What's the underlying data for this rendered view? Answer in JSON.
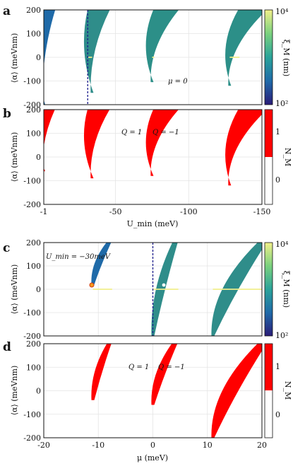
{
  "chart_data": [
    {
      "panel": "a",
      "type": "heatmap",
      "xlabel": "",
      "ylabel": "⟨α⟩ (meVnm)",
      "xlim": [
        -1,
        -150
      ],
      "ylim": [
        -200,
        200
      ],
      "xticks": [
        "-1",
        "-50",
        "-100",
        "-150"
      ],
      "yticks": [
        "-200",
        "-100",
        "0",
        "100",
        "200"
      ],
      "xtick_values": [
        -1,
        -50,
        -100,
        -150
      ],
      "ytick_values": [
        -200,
        -100,
        0,
        100,
        200
      ],
      "annotation": "μ = 0",
      "colorbar": {
        "label": "ξ_M (nm)",
        "min": "10²",
        "max": "10⁴",
        "scale": "log",
        "colors": [
          "#2a1c78",
          "#1f6aa8",
          "#2aa39a",
          "#7ad17e",
          "#f2f08a"
        ]
      },
      "dashed_line_x": -31,
      "grid": true,
      "tongues": [
        {
          "x_top": -6,
          "x_bottom": -1,
          "y_bottom": -200,
          "bulge": 22,
          "color": "#1f6aa8"
        },
        {
          "x_top": -43,
          "x_bottom": -34,
          "y_bottom": -150,
          "bulge": 26,
          "color": "#2f8d8a"
        },
        {
          "x_top": -90,
          "x_bottom": -75,
          "y_bottom": -105,
          "bulge": 30,
          "color": "#2c8f88"
        },
        {
          "x_top": -150,
          "x_bottom": -128,
          "y_bottom": -120,
          "bulge": 34,
          "color": "#2c8f88"
        }
      ]
    },
    {
      "panel": "b",
      "type": "heatmap",
      "xlabel": "U_min (meV)",
      "ylabel": "⟨α⟩ (meVnm)",
      "xlim": [
        -1,
        -150
      ],
      "ylim": [
        -200,
        200
      ],
      "xticks": [
        "-1",
        "-50",
        "-100",
        "-150"
      ],
      "yticks": [
        "-200",
        "-100",
        "0",
        "100",
        "200"
      ],
      "xtick_values": [
        -1,
        -50,
        -100,
        -150
      ],
      "ytick_values": [
        -200,
        -100,
        0,
        100,
        200
      ],
      "annotations": [
        "Q = 1",
        "Q = −1"
      ],
      "colorbar": {
        "label": "N_M",
        "ticks": [
          "1",
          "0"
        ]
      },
      "grid": true,
      "regions": [
        {
          "x_top": -6,
          "x_bottom": -1,
          "y_bottom": -60,
          "bulge": 22
        },
        {
          "x_top": -43,
          "x_bottom": -34,
          "y_bottom": -90,
          "bulge": 26
        },
        {
          "x_top": -90,
          "x_bottom": -75,
          "y_bottom": -80,
          "bulge": 30
        },
        {
          "x_top": -150,
          "x_bottom": -128,
          "y_bottom": -120,
          "bulge": 34
        }
      ]
    },
    {
      "panel": "c",
      "type": "heatmap",
      "xlabel": "",
      "ylabel": "⟨α⟩ (meVnm)",
      "xlim": [
        -20,
        20
      ],
      "ylim": [
        -200,
        200
      ],
      "xticks": [
        "-20",
        "-10",
        "0",
        "10",
        "20"
      ],
      "yticks": [
        "-200",
        "-100",
        "0",
        "100",
        "200"
      ],
      "xtick_values": [
        -20,
        -10,
        0,
        10,
        20
      ],
      "ytick_values": [
        -200,
        -100,
        0,
        100,
        200
      ],
      "annotation": "U_min = −30meV",
      "colorbar": {
        "label": "ξ_M (nm)",
        "min": "10²",
        "max": "10⁴",
        "scale": "log",
        "colors": [
          "#2a1c78",
          "#1f6aa8",
          "#2aa39a",
          "#7ad17e",
          "#f2f08a"
        ]
      },
      "dashed_line_x": 0,
      "grid": true,
      "tongues": [
        {
          "x_top": -8,
          "x_bottom": -11,
          "y_bottom": 20,
          "bulge": 1.2,
          "color": "#1f6aa8"
        },
        {
          "x_top": 4,
          "x_bottom": 0,
          "y_bottom": -200,
          "bulge": 1.5,
          "color": "#2f8d8a"
        },
        {
          "x_top": 20,
          "x_bottom": 11,
          "y_bottom": -200,
          "bulge": 2.5,
          "color": "#2f8d8a"
        }
      ]
    },
    {
      "panel": "d",
      "type": "heatmap",
      "xlabel": "μ (meV)",
      "ylabel": "⟨α⟩ (meVnm)",
      "xlim": [
        -20,
        20
      ],
      "ylim": [
        -200,
        200
      ],
      "xticks": [
        "-20",
        "-10",
        "0",
        "10",
        "20"
      ],
      "yticks": [
        "-200",
        "-100",
        "0",
        "100",
        "200"
      ],
      "xtick_values": [
        -20,
        -10,
        0,
        10,
        20
      ],
      "ytick_values": [
        -200,
        -100,
        0,
        100,
        200
      ],
      "annotations": [
        "Q = 1",
        "Q = −1"
      ],
      "colorbar": {
        "label": "N_M",
        "ticks": [
          "1",
          "0"
        ]
      },
      "grid": true,
      "regions": [
        {
          "x_top": -8,
          "x_bottom": -11,
          "y_bottom": -40,
          "bulge": 1.2
        },
        {
          "x_top": 4,
          "x_bottom": 0,
          "y_bottom": -60,
          "bulge": 1.5
        },
        {
          "x_top": 20,
          "x_bottom": 11,
          "y_bottom": -200,
          "bulge": 2.5
        }
      ]
    }
  ]
}
